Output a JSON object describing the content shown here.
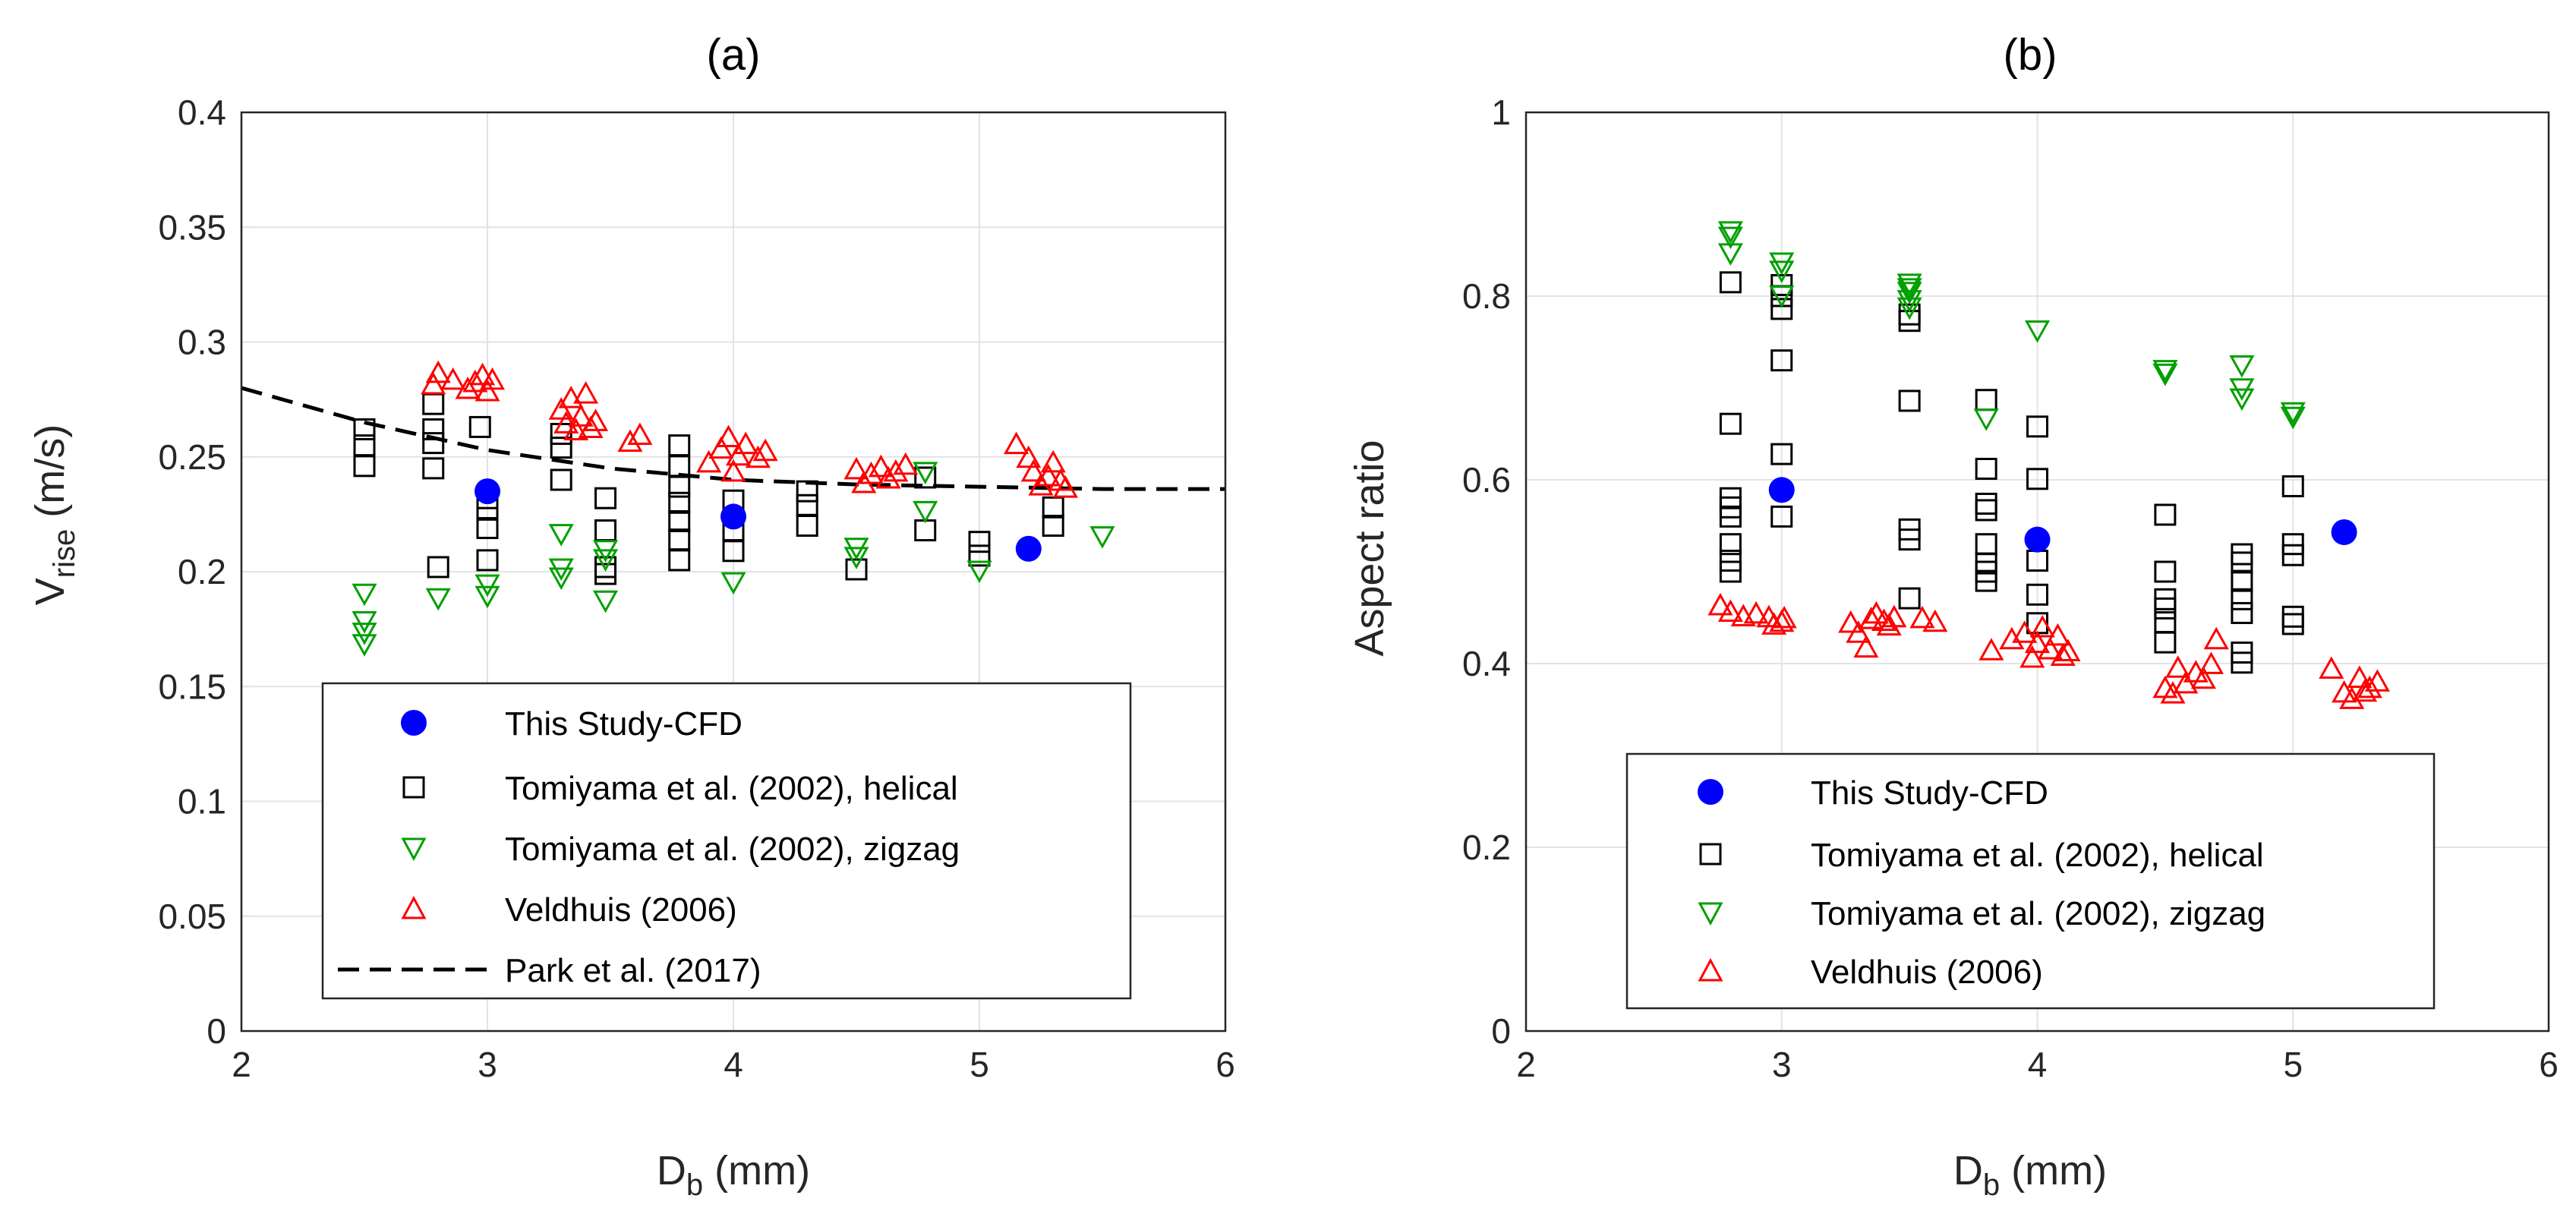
{
  "chart_data": [
    {
      "type": "scatter",
      "panel": "a",
      "title": "(a)",
      "xlabel": "D",
      "xlabel_sub": "b",
      "xlabel_unit": " (mm)",
      "ylabel": "V",
      "ylabel_sub": "rise",
      "ylabel_unit": " (m/s)",
      "xlim": [
        2,
        6
      ],
      "ylim": [
        0,
        0.4
      ],
      "xticks": [
        2,
        3,
        4,
        5,
        6
      ],
      "xtick_labels": [
        "2",
        "3",
        "4",
        "5",
        "6"
      ],
      "yticks": [
        0,
        0.05,
        0.1,
        0.15,
        0.2,
        0.25,
        0.3,
        0.35,
        0.4
      ],
      "ytick_labels": [
        "0",
        "0.05",
        "0.1",
        "0.15",
        "0.2",
        "0.25",
        "0.3",
        "0.35",
        "0.4"
      ],
      "grid": true,
      "legend_position": "bottom-center",
      "series": [
        {
          "name": "This Study-CFD",
          "marker": "circle-filled",
          "color": "#0000ff",
          "points": [
            [
              3.0,
              0.235
            ],
            [
              4.0,
              0.224
            ],
            [
              5.2,
              0.21
            ]
          ]
        },
        {
          "name": "Tomiyama et al. (2002), helical",
          "marker": "square",
          "color": "#000000",
          "points": [
            [
              2.5,
              0.262
            ],
            [
              2.5,
              0.255
            ],
            [
              2.5,
              0.246
            ],
            [
              2.78,
              0.273
            ],
            [
              2.78,
              0.262
            ],
            [
              2.78,
              0.256
            ],
            [
              2.78,
              0.245
            ],
            [
              2.8,
              0.202
            ],
            [
              2.97,
              0.263
            ],
            [
              3.0,
              0.232
            ],
            [
              3.0,
              0.227
            ],
            [
              3.0,
              0.219
            ],
            [
              3.0,
              0.205
            ],
            [
              3.3,
              0.26
            ],
            [
              3.3,
              0.254
            ],
            [
              3.3,
              0.24
            ],
            [
              3.48,
              0.232
            ],
            [
              3.48,
              0.218
            ],
            [
              3.48,
              0.202
            ],
            [
              3.48,
              0.199
            ],
            [
              3.78,
              0.255
            ],
            [
              3.78,
              0.246
            ],
            [
              3.78,
              0.237
            ],
            [
              3.78,
              0.23
            ],
            [
              3.78,
              0.222
            ],
            [
              3.78,
              0.214
            ],
            [
              3.78,
              0.205
            ],
            [
              4.0,
              0.231
            ],
            [
              4.0,
              0.218
            ],
            [
              4.0,
              0.209
            ],
            [
              4.3,
              0.235
            ],
            [
              4.3,
              0.229
            ],
            [
              4.3,
              0.22
            ],
            [
              4.5,
              0.201
            ],
            [
              4.78,
              0.241
            ],
            [
              4.78,
              0.218
            ],
            [
              5.0,
              0.213
            ],
            [
              5.0,
              0.207
            ],
            [
              5.3,
              0.228
            ],
            [
              5.3,
              0.22
            ]
          ]
        },
        {
          "name": "Tomiyama et al. (2002), zigzag",
          "marker": "triangle-down",
          "color": "#00a000",
          "points": [
            [
              2.5,
              0.191
            ],
            [
              2.5,
              0.179
            ],
            [
              2.5,
              0.174
            ],
            [
              2.5,
              0.169
            ],
            [
              2.8,
              0.189
            ],
            [
              3.0,
              0.195
            ],
            [
              3.0,
              0.19
            ],
            [
              3.3,
              0.217
            ],
            [
              3.3,
              0.202
            ],
            [
              3.3,
              0.198
            ],
            [
              3.48,
              0.21
            ],
            [
              3.48,
              0.206
            ],
            [
              3.48,
              0.188
            ],
            [
              4.0,
              0.196
            ],
            [
              4.5,
              0.211
            ],
            [
              4.5,
              0.207
            ],
            [
              4.78,
              0.244
            ],
            [
              4.78,
              0.227
            ],
            [
              5.0,
              0.201
            ],
            [
              5.5,
              0.216
            ]
          ]
        },
        {
          "name": "Veldhuis (2006)",
          "marker": "triangle-up",
          "color": "#ff0000",
          "points": [
            [
              2.78,
              0.281
            ],
            [
              2.8,
              0.286
            ],
            [
              2.86,
              0.283
            ],
            [
              2.92,
              0.279
            ],
            [
              2.95,
              0.282
            ],
            [
              2.98,
              0.285
            ],
            [
              3.0,
              0.278
            ],
            [
              3.02,
              0.283
            ],
            [
              3.3,
              0.27
            ],
            [
              3.32,
              0.264
            ],
            [
              3.34,
              0.275
            ],
            [
              3.36,
              0.261
            ],
            [
              3.38,
              0.267
            ],
            [
              3.4,
              0.277
            ],
            [
              3.42,
              0.262
            ],
            [
              3.44,
              0.265
            ],
            [
              3.58,
              0.256
            ],
            [
              3.62,
              0.259
            ],
            [
              3.9,
              0.247
            ],
            [
              3.95,
              0.253
            ],
            [
              3.98,
              0.258
            ],
            [
              4.0,
              0.243
            ],
            [
              4.02,
              0.25
            ],
            [
              4.05,
              0.255
            ],
            [
              4.1,
              0.249
            ],
            [
              4.13,
              0.252
            ],
            [
              4.5,
              0.244
            ],
            [
              4.53,
              0.238
            ],
            [
              4.56,
              0.242
            ],
            [
              4.6,
              0.245
            ],
            [
              4.63,
              0.24
            ],
            [
              4.66,
              0.243
            ],
            [
              4.7,
              0.246
            ],
            [
              5.15,
              0.255
            ],
            [
              5.2,
              0.249
            ],
            [
              5.22,
              0.243
            ],
            [
              5.25,
              0.237
            ],
            [
              5.28,
              0.241
            ],
            [
              5.3,
              0.247
            ],
            [
              5.33,
              0.239
            ],
            [
              5.35,
              0.236
            ]
          ]
        },
        {
          "name": "Park et al. (2017)",
          "marker": "dashed-line",
          "color": "#000000",
          "points": [
            [
              2.0,
              0.28
            ],
            [
              2.5,
              0.265
            ],
            [
              3.0,
              0.253
            ],
            [
              3.5,
              0.245
            ],
            [
              4.0,
              0.24
            ],
            [
              4.5,
              0.238
            ],
            [
              5.0,
              0.237
            ],
            [
              5.5,
              0.236
            ],
            [
              6.0,
              0.236
            ]
          ]
        }
      ]
    },
    {
      "type": "scatter",
      "panel": "b",
      "title": "(b)",
      "xlabel": "D",
      "xlabel_sub": "b",
      "xlabel_unit": " (mm)",
      "ylabel": "Aspect ratio",
      "xlim": [
        2,
        6
      ],
      "ylim": [
        0,
        1
      ],
      "xticks": [
        2,
        3,
        4,
        5,
        6
      ],
      "xtick_labels": [
        "2",
        "3",
        "4",
        "5",
        "6"
      ],
      "yticks": [
        0,
        0.2,
        0.4,
        0.6,
        0.8,
        1
      ],
      "ytick_labels": [
        "0",
        "0.2",
        "0.4",
        "0.6",
        "0.8",
        "1"
      ],
      "grid": true,
      "legend_position": "bottom-center",
      "series": [
        {
          "name": "This Study-CFD",
          "marker": "circle-filled",
          "color": "#0000ff",
          "points": [
            [
              3.0,
              0.589
            ],
            [
              4.0,
              0.535
            ],
            [
              5.2,
              0.543
            ]
          ]
        },
        {
          "name": "Tomiyama et al. (2002), helical",
          "marker": "square",
          "color": "#000000",
          "points": [
            [
              2.8,
              0.815
            ],
            [
              2.8,
              0.661
            ],
            [
              2.8,
              0.58
            ],
            [
              2.8,
              0.57
            ],
            [
              2.8,
              0.56
            ],
            [
              2.8,
              0.53
            ],
            [
              2.8,
              0.512
            ],
            [
              2.8,
              0.5
            ],
            [
              3.0,
              0.812
            ],
            [
              3.0,
              0.8
            ],
            [
              3.0,
              0.786
            ],
            [
              3.0,
              0.73
            ],
            [
              3.0,
              0.628
            ],
            [
              3.0,
              0.56
            ],
            [
              3.5,
              0.78
            ],
            [
              3.5,
              0.773
            ],
            [
              3.5,
              0.686
            ],
            [
              3.5,
              0.546
            ],
            [
              3.5,
              0.535
            ],
            [
              3.5,
              0.471
            ],
            [
              3.8,
              0.687
            ],
            [
              3.8,
              0.612
            ],
            [
              3.8,
              0.574
            ],
            [
              3.8,
              0.567
            ],
            [
              3.8,
              0.53
            ],
            [
              3.8,
              0.509
            ],
            [
              3.8,
              0.5
            ],
            [
              3.8,
              0.49
            ],
            [
              4.0,
              0.658
            ],
            [
              4.0,
              0.601
            ],
            [
              4.0,
              0.512
            ],
            [
              4.0,
              0.475
            ],
            [
              4.0,
              0.444
            ],
            [
              4.5,
              0.562
            ],
            [
              4.5,
              0.5
            ],
            [
              4.5,
              0.47
            ],
            [
              4.5,
              0.46
            ],
            [
              4.5,
              0.445
            ],
            [
              4.5,
              0.423
            ],
            [
              4.8,
              0.519
            ],
            [
              4.8,
              0.51
            ],
            [
              4.8,
              0.49
            ],
            [
              4.8,
              0.47
            ],
            [
              4.8,
              0.455
            ],
            [
              4.8,
              0.412
            ],
            [
              4.8,
              0.401
            ],
            [
              5.0,
              0.593
            ],
            [
              5.0,
              0.53
            ],
            [
              5.0,
              0.518
            ],
            [
              5.0,
              0.451
            ],
            [
              5.0,
              0.443
            ]
          ]
        },
        {
          "name": "Tomiyama et al. (2002), zigzag",
          "marker": "triangle-down",
          "color": "#00a000",
          "points": [
            [
              2.8,
              0.872
            ],
            [
              2.8,
              0.866
            ],
            [
              2.8,
              0.848
            ],
            [
              3.0,
              0.838
            ],
            [
              3.0,
              0.829
            ],
            [
              3.0,
              0.802
            ],
            [
              3.5,
              0.815
            ],
            [
              3.5,
              0.81
            ],
            [
              3.5,
              0.806
            ],
            [
              3.5,
              0.797
            ],
            [
              3.5,
              0.789
            ],
            [
              3.8,
              0.668
            ],
            [
              4.0,
              0.764
            ],
            [
              4.5,
              0.721
            ],
            [
              4.5,
              0.717
            ],
            [
              4.8,
              0.726
            ],
            [
              4.8,
              0.701
            ],
            [
              4.8,
              0.69
            ],
            [
              5.0,
              0.675
            ],
            [
              5.0,
              0.67
            ]
          ]
        },
        {
          "name": "Veldhuis (2006)",
          "marker": "triangle-up",
          "color": "#ff0000",
          "points": [
            [
              2.76,
              0.462
            ],
            [
              2.8,
              0.455
            ],
            [
              2.85,
              0.45
            ],
            [
              2.9,
              0.453
            ],
            [
              2.95,
              0.449
            ],
            [
              2.97,
              0.441
            ],
            [
              3.0,
              0.444
            ],
            [
              3.01,
              0.448
            ],
            [
              3.27,
              0.443
            ],
            [
              3.3,
              0.432
            ],
            [
              3.33,
              0.416
            ],
            [
              3.35,
              0.447
            ],
            [
              3.37,
              0.453
            ],
            [
              3.4,
              0.445
            ],
            [
              3.42,
              0.44
            ],
            [
              3.44,
              0.449
            ],
            [
              3.55,
              0.448
            ],
            [
              3.6,
              0.444
            ],
            [
              3.82,
              0.413
            ],
            [
              3.9,
              0.425
            ],
            [
              3.95,
              0.432
            ],
            [
              3.98,
              0.405
            ],
            [
              4.0,
              0.421
            ],
            [
              4.02,
              0.438
            ],
            [
              4.05,
              0.414
            ],
            [
              4.08,
              0.429
            ],
            [
              4.1,
              0.407
            ],
            [
              4.12,
              0.412
            ],
            [
              4.5,
              0.372
            ],
            [
              4.53,
              0.366
            ],
            [
              4.55,
              0.394
            ],
            [
              4.58,
              0.377
            ],
            [
              4.62,
              0.389
            ],
            [
              4.65,
              0.382
            ],
            [
              4.68,
              0.398
            ],
            [
              4.7,
              0.425
            ],
            [
              5.15,
              0.393
            ],
            [
              5.2,
              0.367
            ],
            [
              5.23,
              0.36
            ],
            [
              5.26,
              0.383
            ],
            [
              5.28,
              0.368
            ],
            [
              5.3,
              0.372
            ],
            [
              5.33,
              0.379
            ]
          ]
        }
      ]
    }
  ]
}
